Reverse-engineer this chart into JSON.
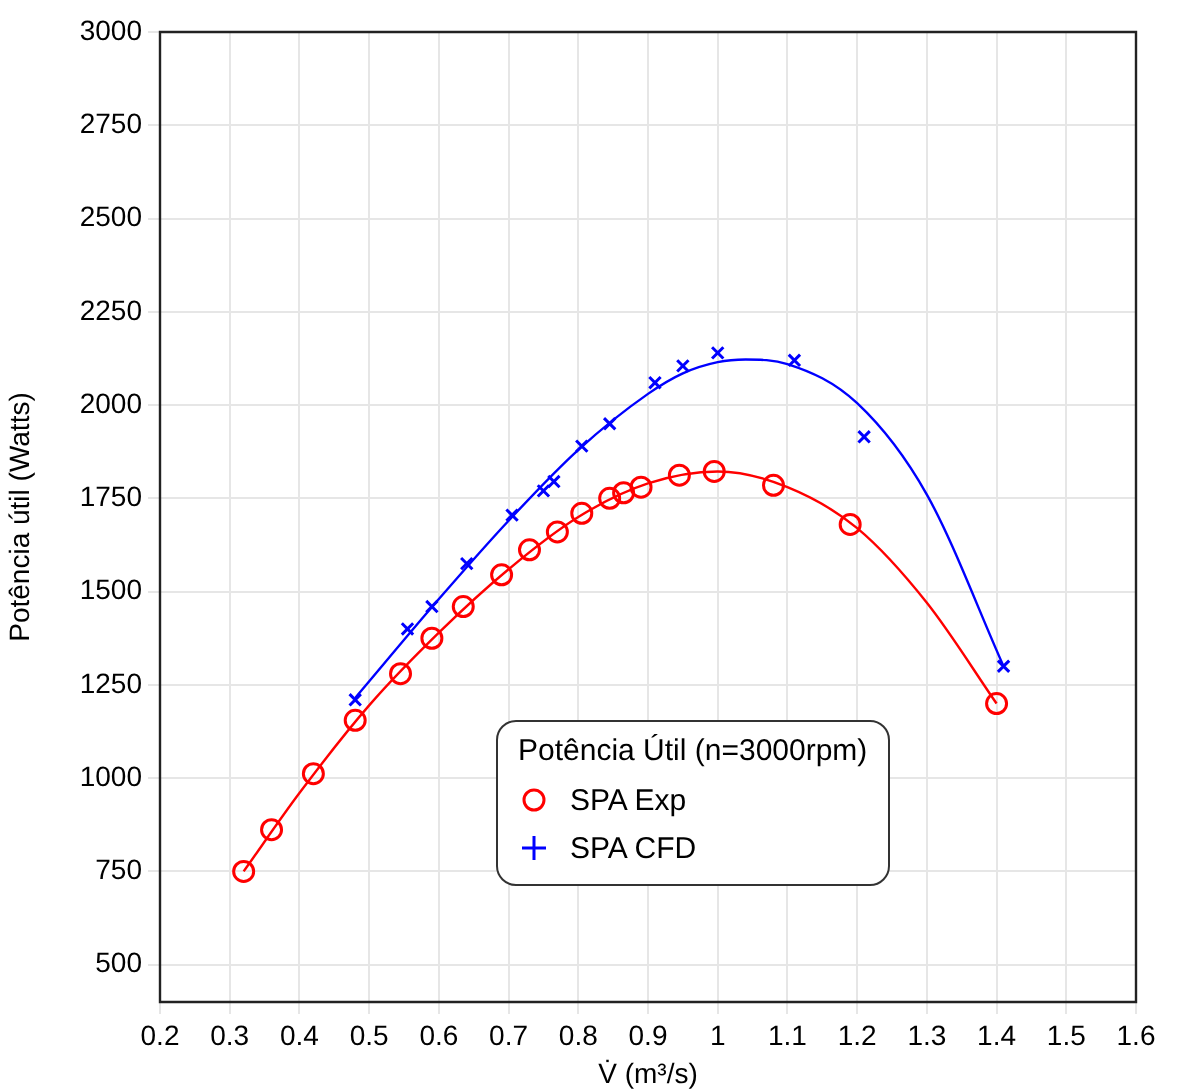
{
  "chart_data": {
    "type": "scatter",
    "xlabel": "V̇ (m³/s)",
    "ylabel": "Potência útil (Watts)",
    "legend_title": "Potência Útil (n=3000rpm)",
    "legend": "bottom right",
    "grid": true,
    "xlim": [
      0.2,
      1.6
    ],
    "xticks": [
      0.2,
      0.3,
      0.4,
      0.5,
      0.6,
      0.7,
      0.8,
      0.9,
      1,
      1.1,
      1.2,
      1.3,
      1.4,
      1.5,
      1.6
    ],
    "ylim": [
      400,
      3000
    ],
    "yticks": [
      500,
      750,
      1000,
      1250,
      1500,
      1750,
      2000,
      2250,
      2500,
      2750,
      3000
    ],
    "series": [
      {
        "name": "SPA Exp",
        "marker": "circle",
        "color": "#ff0000",
        "x": [
          0.32,
          0.36,
          0.42,
          0.48,
          0.545,
          0.59,
          0.635,
          0.69,
          0.73,
          0.77,
          0.805,
          0.845,
          0.865,
          0.89,
          0.945,
          0.995,
          1.08,
          1.19,
          1.4
        ],
        "values": [
          750,
          862,
          1012,
          1155,
          1280,
          1375,
          1460,
          1545,
          1612,
          1660,
          1710,
          1750,
          1765,
          1780,
          1812,
          1822,
          1785,
          1680,
          1200
        ]
      },
      {
        "name": "SPA CFD",
        "marker": "cross",
        "color": "#0000ff",
        "x": [
          0.48,
          0.555,
          0.59,
          0.64,
          0.705,
          0.75,
          0.765,
          0.805,
          0.845,
          0.91,
          0.95,
          1.0,
          1.11,
          1.21,
          1.41
        ],
        "values": [
          1210,
          1400,
          1460,
          1575,
          1705,
          1770,
          1795,
          1890,
          1950,
          2060,
          2105,
          2140,
          2120,
          1915,
          1300
        ]
      },
      {
        "type": "line",
        "marker": "none",
        "color": "#ff0000",
        "x": [
          0.32,
          0.4,
          0.5,
          0.6,
          0.7,
          0.8,
          0.9,
          1.0,
          1.1,
          1.2,
          1.3,
          1.4
        ],
        "values": [
          750,
          960,
          1195,
          1390,
          1560,
          1700,
          1790,
          1822,
          1780,
          1670,
          1470,
          1200
        ]
      },
      {
        "type": "line",
        "marker": "none",
        "color": "#0000ff",
        "x": [
          0.48,
          0.6,
          0.7,
          0.8,
          0.9,
          0.95,
          1.0,
          1.04,
          1.1,
          1.2,
          1.3,
          1.41
        ],
        "values": [
          1215,
          1480,
          1690,
          1880,
          2030,
          2085,
          2115,
          2122,
          2110,
          2005,
          1760,
          1300
        ]
      }
    ]
  }
}
